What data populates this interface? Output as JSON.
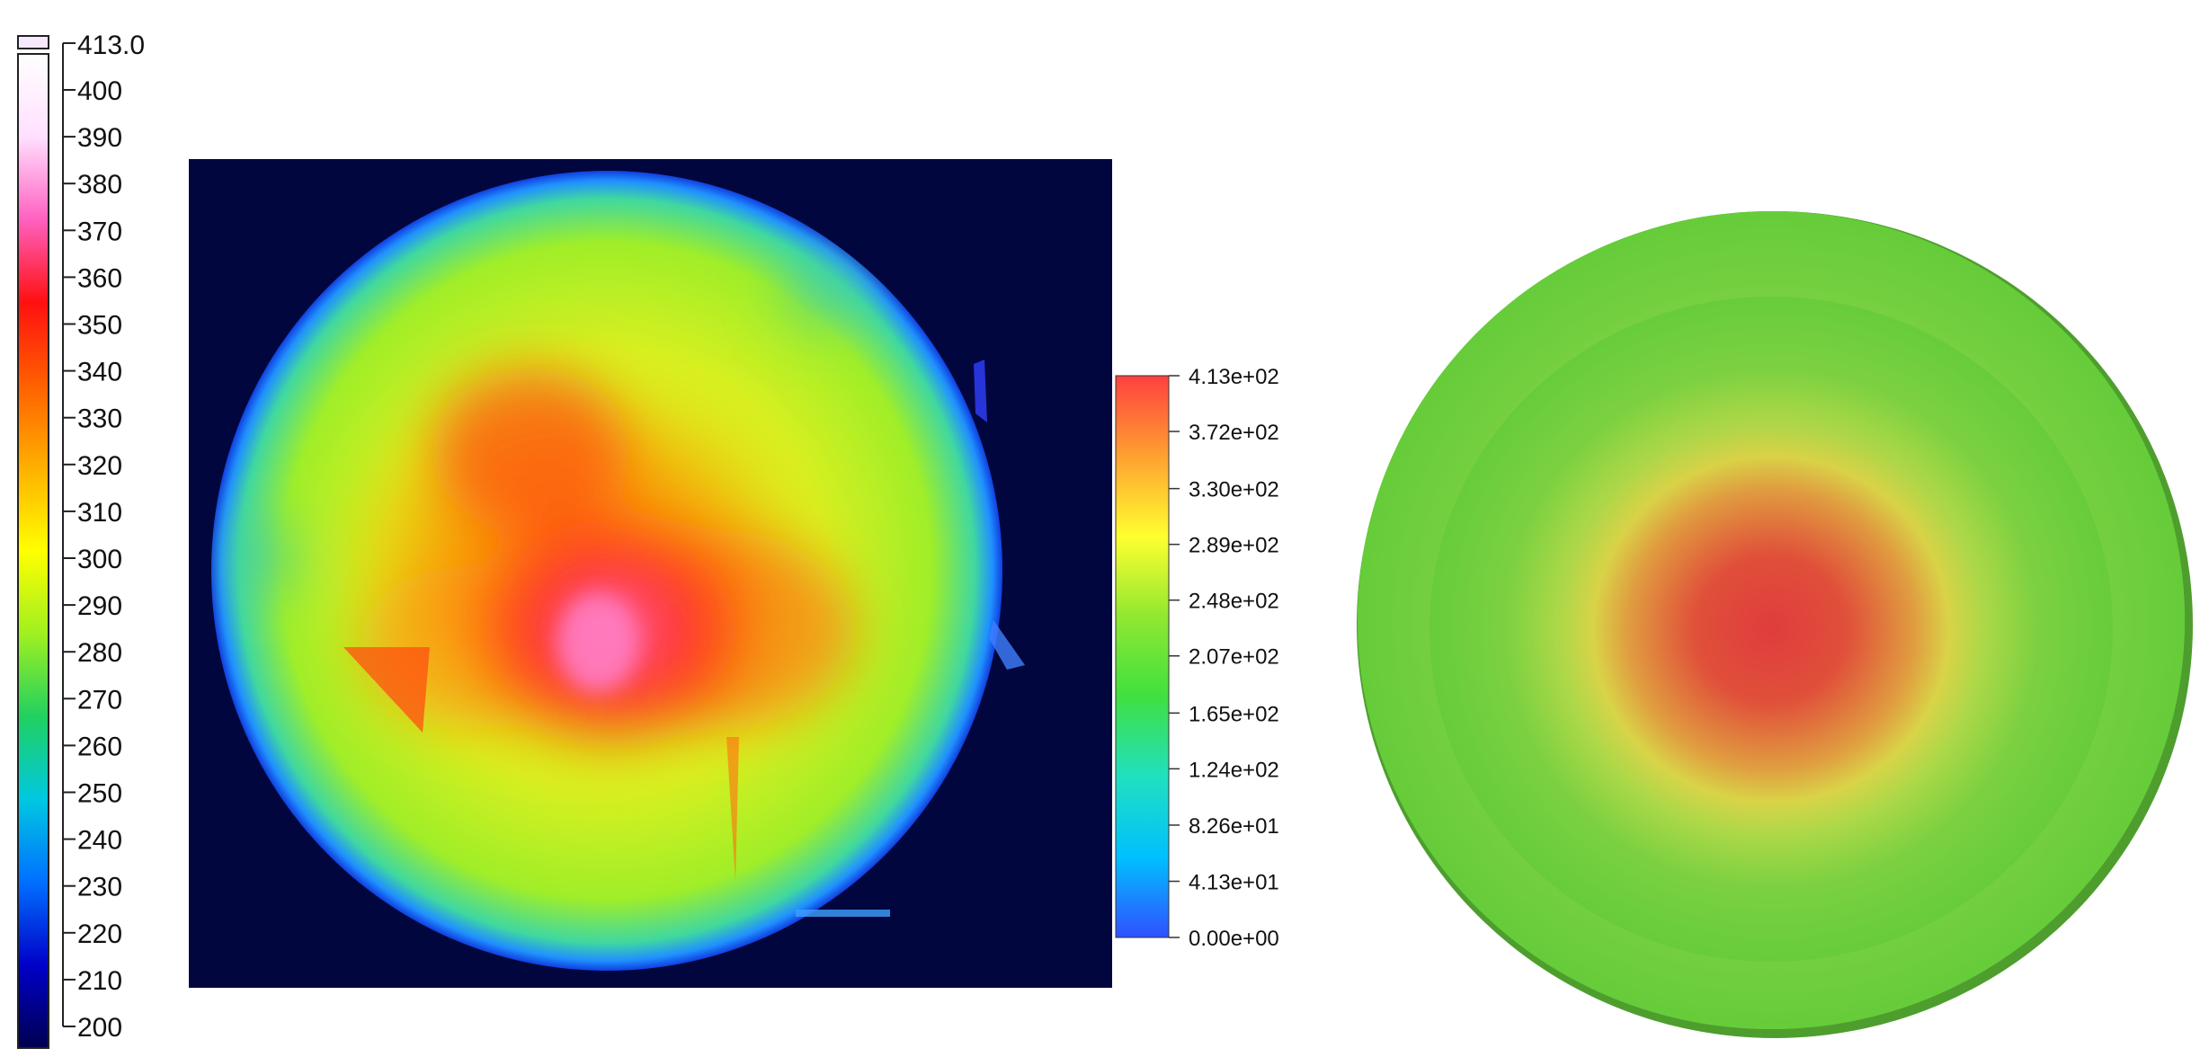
{
  "chart_data": [
    {
      "type": "heatmap",
      "source": "thermal-image",
      "title": "",
      "colorbar": {
        "min": 200,
        "max": 413,
        "top_label": "413.0",
        "ticks": [
          "400",
          "390",
          "380",
          "370",
          "360",
          "350",
          "340",
          "330",
          "320",
          "310",
          "300",
          "290",
          "280",
          "270",
          "260",
          "250",
          "240",
          "230",
          "220",
          "210",
          "200"
        ],
        "tick_values": [
          400,
          390,
          380,
          370,
          360,
          350,
          340,
          330,
          320,
          310,
          300,
          290,
          280,
          270,
          260,
          250,
          240,
          230,
          220,
          210,
          200
        ],
        "colors": [
          "#000050",
          "#0000c8",
          "#0070ff",
          "#00c8e0",
          "#20d060",
          "#a0f020",
          "#ffff00",
          "#ffb000",
          "#ff6000",
          "#ff1010",
          "#ff60c0",
          "#ffe0ff",
          "#ffffff"
        ]
      },
      "hotspot_peak": 413.0
    },
    {
      "type": "heatmap",
      "source": "simulation",
      "title": "",
      "colorbar": {
        "min": 0,
        "max": 413,
        "ticks": [
          "4.13e+02",
          "3.72e+02",
          "3.30e+02",
          "2.89e+02",
          "2.48e+02",
          "2.07e+02",
          "1.65e+02",
          "1.24e+02",
          "8.26e+01",
          "4.13e+01",
          "0.00e+00"
        ],
        "tick_values": [
          413,
          372,
          330,
          289,
          248,
          207,
          165,
          124,
          82.6,
          41.3,
          0
        ],
        "colors": [
          "#3050ff",
          "#00c0ff",
          "#20e0c0",
          "#40e040",
          "#90e830",
          "#ffff30",
          "#ffa030",
          "#ff4040"
        ]
      },
      "field": {
        "center_value": 370,
        "edge_value": 220
      }
    }
  ]
}
